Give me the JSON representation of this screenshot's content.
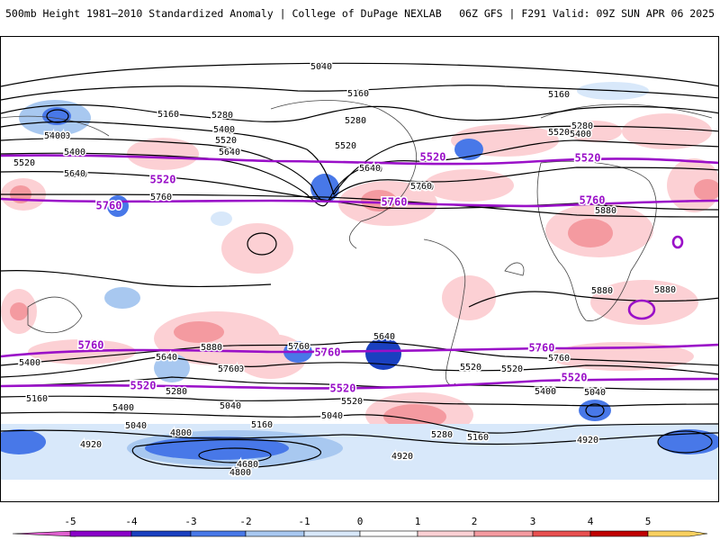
{
  "header": {
    "left_title": "500mb Height 1981–2010 Standardized Anomaly | College of DuPage NEXLAB",
    "right_title": "06Z GFS | F291 Valid: 09Z SUN APR 06 2025"
  },
  "map": {
    "projection": "global",
    "contour_labels": [
      {
        "text": "5040",
        "kind": "black"
      },
      {
        "text": "5160",
        "kind": "black"
      },
      {
        "text": "5160",
        "kind": "black"
      },
      {
        "text": "5160",
        "kind": "black"
      },
      {
        "text": "5280",
        "kind": "black"
      },
      {
        "text": "5280",
        "kind": "black"
      },
      {
        "text": "5280",
        "kind": "black"
      },
      {
        "text": "5400",
        "kind": "black"
      },
      {
        "text": "5400",
        "kind": "black"
      },
      {
        "text": "5400",
        "kind": "black"
      },
      {
        "text": "5520",
        "kind": "black"
      },
      {
        "text": "5520",
        "kind": "black"
      },
      {
        "text": "5520",
        "kind": "black"
      },
      {
        "text": "5640",
        "kind": "black"
      },
      {
        "text": "5640",
        "kind": "black"
      },
      {
        "text": "5760",
        "kind": "black"
      },
      {
        "text": "5760",
        "kind": "black"
      },
      {
        "text": "5760",
        "kind": "black"
      },
      {
        "text": "5640",
        "kind": "black"
      },
      {
        "text": "5040",
        "kind": "black"
      },
      {
        "text": "5400",
        "kind": "black"
      },
      {
        "text": "5520",
        "kind": "black"
      },
      {
        "text": "5640",
        "kind": "black"
      },
      {
        "text": "5880",
        "kind": "black"
      },
      {
        "text": "5880",
        "kind": "black"
      },
      {
        "text": "5880",
        "kind": "black"
      },
      {
        "text": "5880",
        "kind": "black"
      },
      {
        "text": "5640",
        "kind": "black"
      },
      {
        "text": "5760",
        "kind": "black"
      },
      {
        "text": "5760",
        "kind": "black"
      },
      {
        "text": "5640",
        "kind": "black"
      },
      {
        "text": "5760",
        "kind": "black"
      },
      {
        "text": "5640",
        "kind": "black"
      },
      {
        "text": "5520",
        "kind": "black"
      },
      {
        "text": "5760",
        "kind": "black"
      },
      {
        "text": "5520",
        "kind": "black"
      },
      {
        "text": "5280",
        "kind": "black"
      },
      {
        "text": "5400",
        "kind": "black"
      },
      {
        "text": "5400",
        "kind": "black"
      },
      {
        "text": "5520",
        "kind": "black"
      },
      {
        "text": "5400",
        "kind": "black"
      },
      {
        "text": "5160",
        "kind": "black"
      },
      {
        "text": "5040",
        "kind": "black"
      },
      {
        "text": "5160",
        "kind": "black"
      },
      {
        "text": "5040",
        "kind": "black"
      },
      {
        "text": "5280",
        "kind": "black"
      },
      {
        "text": "5160",
        "kind": "black"
      },
      {
        "text": "5040",
        "kind": "black"
      },
      {
        "text": "5040",
        "kind": "black"
      },
      {
        "text": "4920",
        "kind": "black"
      },
      {
        "text": "4800",
        "kind": "black"
      },
      {
        "text": "4680",
        "kind": "black"
      },
      {
        "text": "4800",
        "kind": "black"
      },
      {
        "text": "4920",
        "kind": "black"
      },
      {
        "text": "4920",
        "kind": "black"
      },
      {
        "text": "5520",
        "kind": "purple"
      },
      {
        "text": "5520",
        "kind": "purple"
      },
      {
        "text": "5520",
        "kind": "purple"
      },
      {
        "text": "5760",
        "kind": "purple"
      },
      {
        "text": "5760",
        "kind": "purple"
      },
      {
        "text": "5760",
        "kind": "purple"
      },
      {
        "text": "5760",
        "kind": "purple"
      },
      {
        "text": "5760",
        "kind": "purple"
      },
      {
        "text": "5760",
        "kind": "purple"
      },
      {
        "text": "5520",
        "kind": "purple"
      },
      {
        "text": "5520",
        "kind": "purple"
      },
      {
        "text": "5520",
        "kind": "purple"
      }
    ]
  },
  "colorbar": {
    "ticks": [
      {
        "label": "-5"
      },
      {
        "label": "-4"
      },
      {
        "label": "-3"
      },
      {
        "label": "-2"
      },
      {
        "label": "-1"
      },
      {
        "label": "0"
      },
      {
        "label": "1"
      },
      {
        "label": "2"
      },
      {
        "label": "3"
      },
      {
        "label": "4"
      },
      {
        "label": "5"
      }
    ],
    "colors": {
      "neg5": "#e060d0",
      "neg4": "#8a00c8",
      "neg3": "#1a40c0",
      "neg2": "#4878e8",
      "neg1": "#a8c8f0",
      "neg0": "#d8e8fa",
      "pos0": "#ffffff",
      "pos1": "#fcd0d4",
      "pos2": "#f49aa0",
      "pos3": "#e85050",
      "pos4": "#c00000",
      "pos5": "#f4b030",
      "pos6": "#f8d060"
    }
  }
}
